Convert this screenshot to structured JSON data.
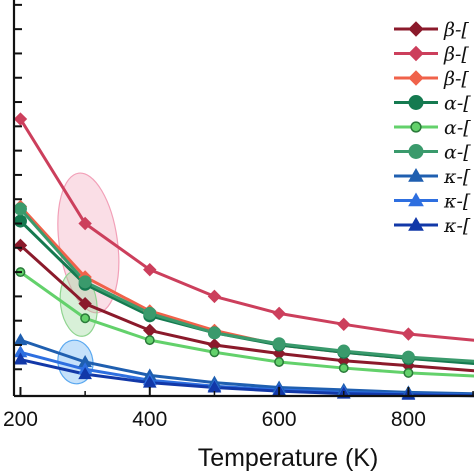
{
  "chart_data": {
    "type": "line",
    "title": "",
    "xlabel": "Temperature (K)",
    "ylabel": "",
    "xlim": [
      190,
      920
    ],
    "ylim": [
      0.9,
      17.2
    ],
    "x_ticks": [
      200,
      400,
      600,
      800
    ],
    "x_tick_labels": [
      "200",
      "400",
      "600",
      "800"
    ],
    "y_ticks": [
      2,
      3,
      4,
      5,
      6,
      7,
      8,
      9,
      10,
      11,
      12,
      13,
      14,
      15,
      16,
      17
    ],
    "grid": false,
    "legend_placement": "top-right",
    "x": [
      200,
      300,
      400,
      500,
      600,
      700,
      800,
      920
    ],
    "series": [
      {
        "name": "β-[",
        "color": "#8b1a2b",
        "marker": "diamond",
        "values": [
          7.1,
          4.7,
          3.6,
          3.0,
          2.65,
          2.35,
          2.15,
          1.9
        ]
      },
      {
        "name": "β-[",
        "color": "#cc3f5c",
        "marker": "diamond",
        "values": [
          12.3,
          8.0,
          6.1,
          5.0,
          4.3,
          3.85,
          3.45,
          3.15
        ]
      },
      {
        "name": "β-[",
        "color": "#f0624a",
        "marker": "diamond",
        "values": [
          8.7,
          5.8,
          4.4,
          3.6,
          3.0,
          2.7,
          2.45,
          2.25
        ]
      },
      {
        "name": "α-[",
        "color": "#157a50",
        "marker": "circle",
        "values": [
          8.1,
          5.5,
          4.2,
          3.5,
          3.0,
          2.7,
          2.45,
          2.2
        ]
      },
      {
        "name": "α-[",
        "color": "#63d16b",
        "marker": "circle-small",
        "values": [
          6.0,
          4.1,
          3.2,
          2.7,
          2.3,
          2.05,
          1.85,
          1.7
        ]
      },
      {
        "name": "α-[",
        "color": "#3a9a6c",
        "marker": "circle",
        "values": [
          8.6,
          5.6,
          4.3,
          3.5,
          3.05,
          2.75,
          2.5,
          2.3
        ]
      },
      {
        "name": "κ-[",
        "color": "#1f5fb0",
        "marker": "triangle",
        "values": [
          3.2,
          2.3,
          1.75,
          1.45,
          1.25,
          1.15,
          1.05,
          0.98
        ]
      },
      {
        "name": "κ-[",
        "color": "#2e6fe0",
        "marker": "triangle",
        "values": [
          2.7,
          2.0,
          1.55,
          1.3,
          1.15,
          1.05,
          0.98,
          0.92
        ]
      },
      {
        "name": "κ-[",
        "color": "#1238a8",
        "marker": "triangle",
        "values": [
          2.4,
          1.8,
          1.45,
          1.25,
          1.1,
          1.0,
          0.95,
          0.9
        ]
      }
    ],
    "annotations": [
      {
        "shape": "ellipse",
        "color": "#f2a0b8",
        "center": [
          305,
          7.2
        ],
        "radii": [
          45,
          2.9
        ]
      },
      {
        "shape": "ellipse",
        "color": "#8fd48f",
        "center": [
          290,
          4.7
        ],
        "radii": [
          28,
          1.35
        ]
      },
      {
        "shape": "ellipse",
        "color": "#5aa8f0",
        "center": [
          285,
          2.3
        ],
        "radii": [
          27,
          0.9
        ]
      }
    ]
  }
}
